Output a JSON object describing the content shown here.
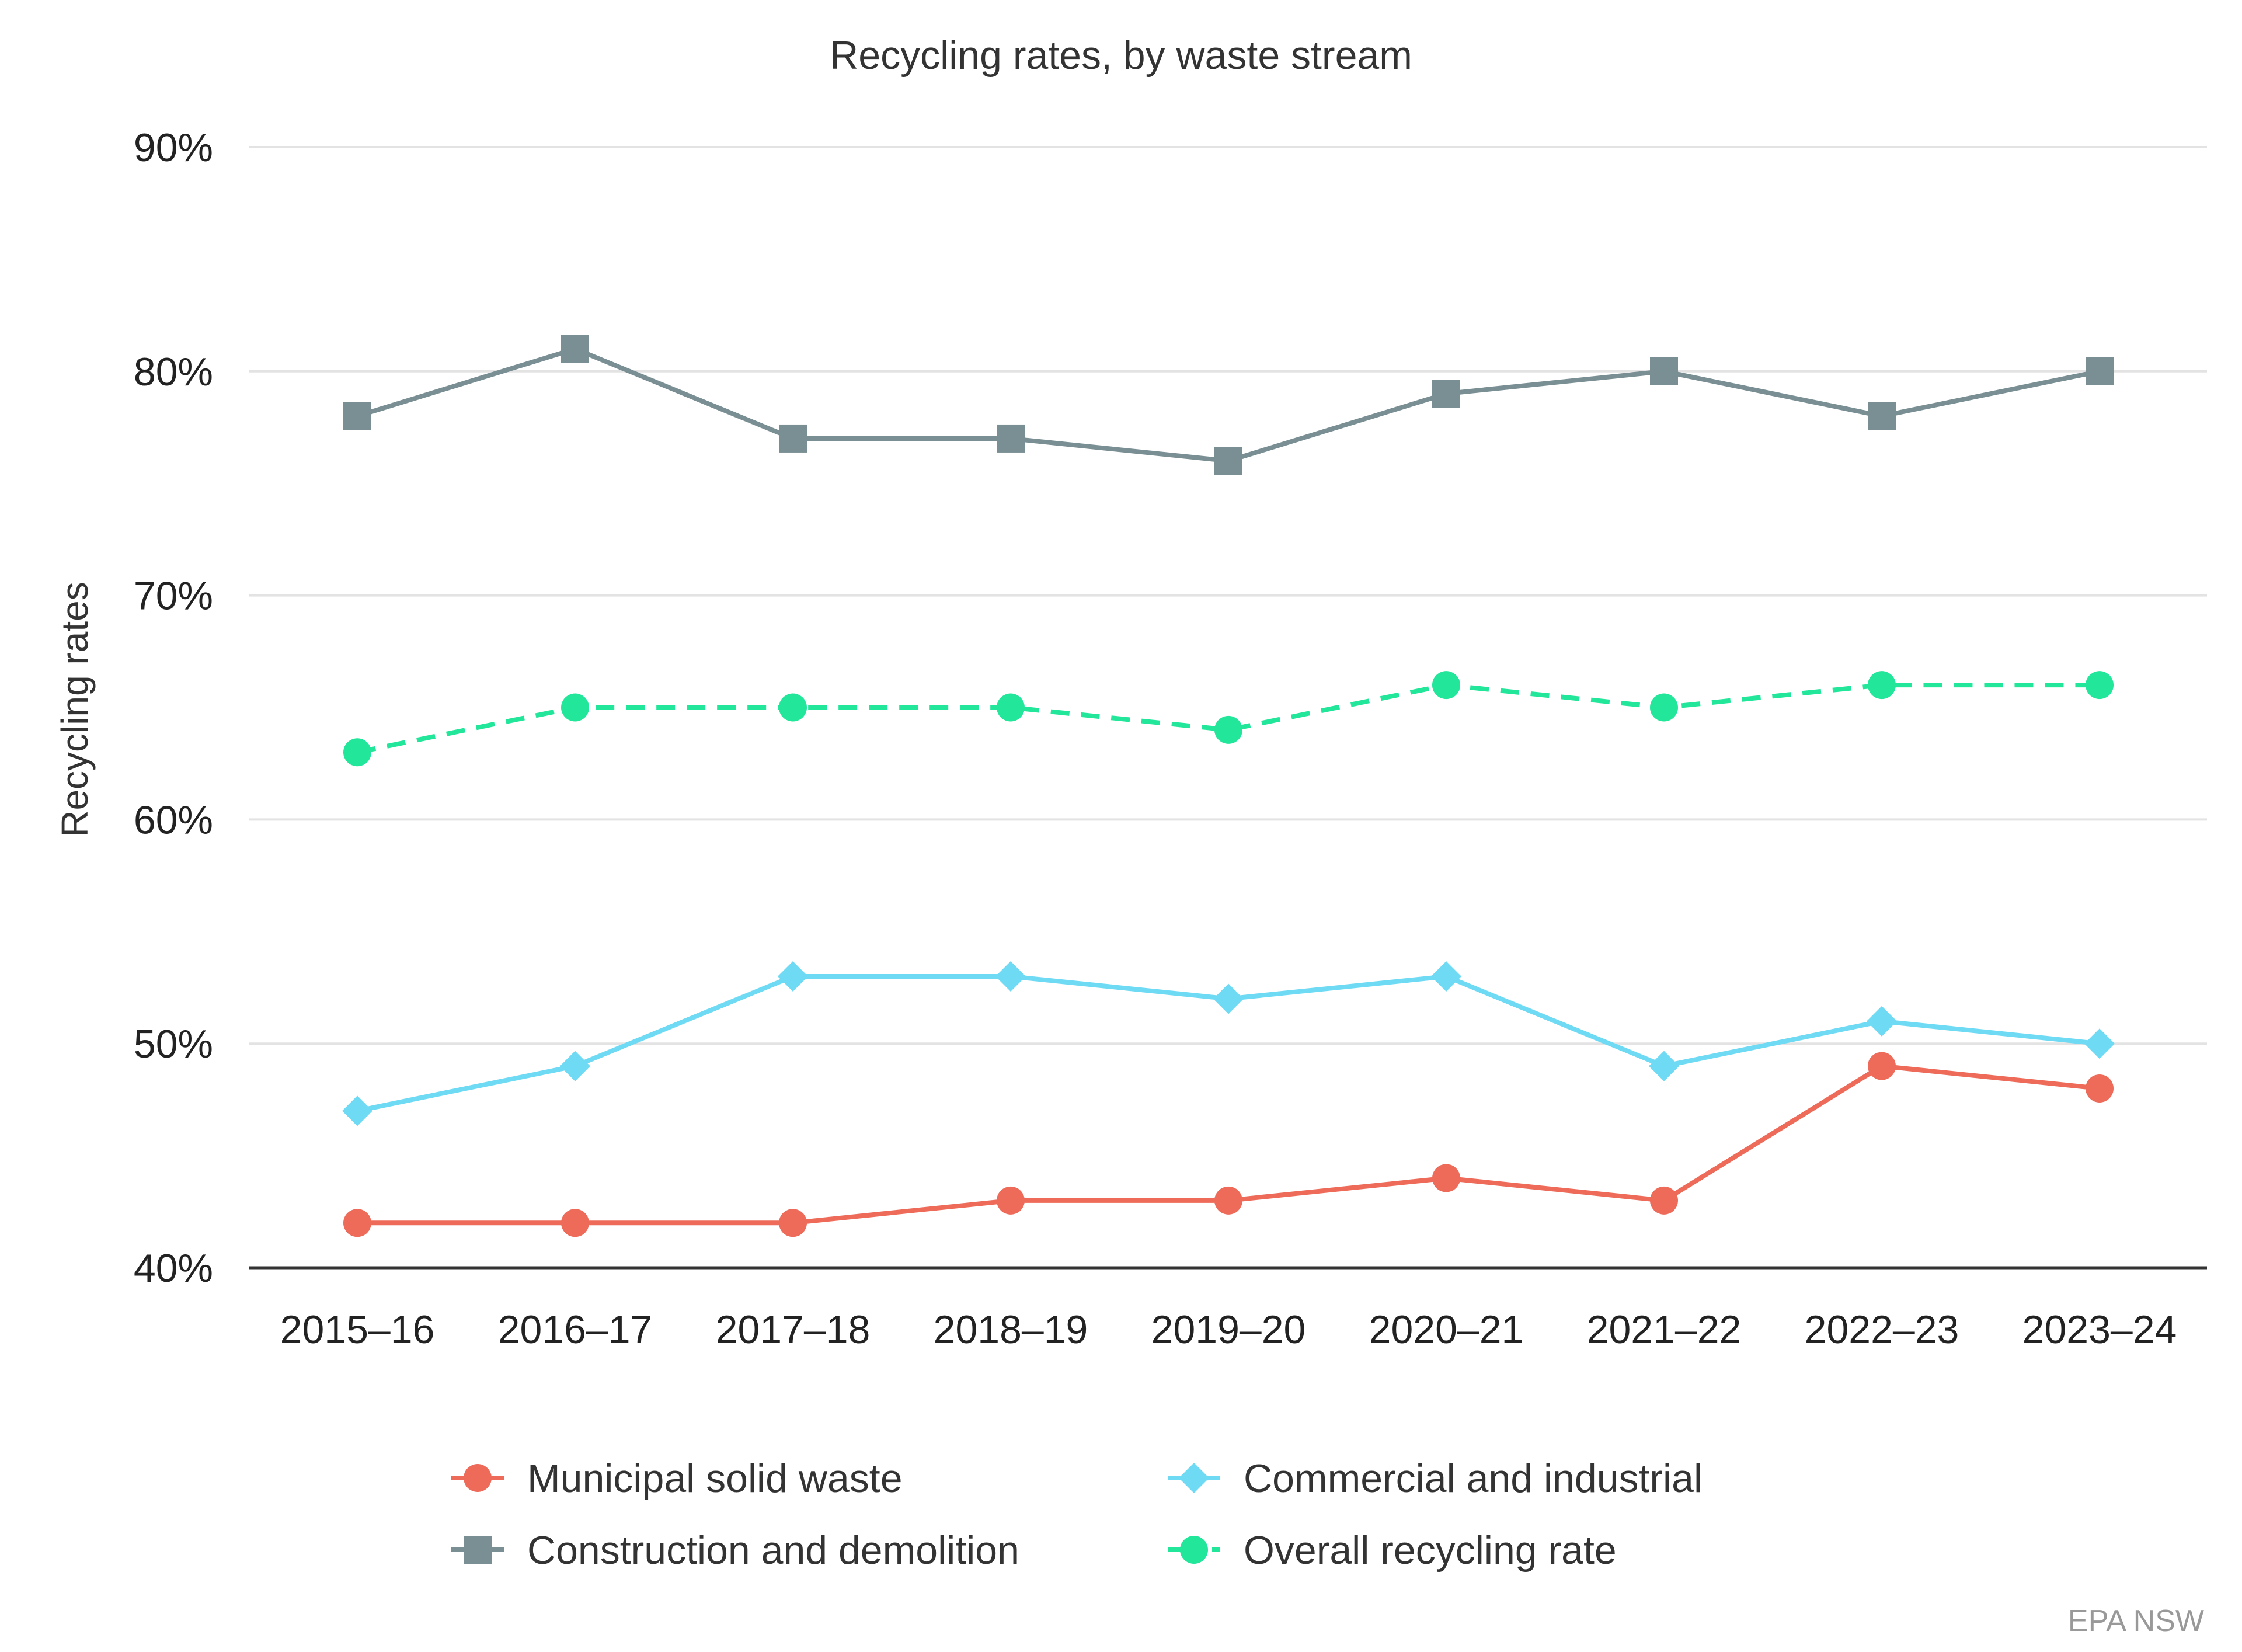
{
  "chart_data": {
    "type": "line",
    "title": "Recycling rates, by waste stream",
    "xlabel": "",
    "ylabel": "Recycling rates",
    "ylim": [
      40,
      90
    ],
    "yticks": [
      40,
      50,
      60,
      70,
      80,
      90
    ],
    "ytick_labels": [
      "40%",
      "50%",
      "60%",
      "70%",
      "80%",
      "90%"
    ],
    "grid": true,
    "legend_position": "bottom-center",
    "categories": [
      "2015–16",
      "2016–17",
      "2017–18",
      "2018–19",
      "2019–20",
      "2020–21",
      "2021–22",
      "2022–23",
      "2023–24"
    ],
    "series": [
      {
        "name": "Municipal solid waste",
        "color": "#ee6b5a",
        "marker": "circle",
        "dash": "solid",
        "values": [
          42,
          42,
          42,
          43,
          43,
          44,
          43,
          49,
          48
        ]
      },
      {
        "name": "Commercial and industrial",
        "color": "#6fdaf4",
        "marker": "diamond",
        "dash": "solid",
        "values": [
          47,
          49,
          53,
          53,
          52,
          53,
          49,
          51,
          50
        ]
      },
      {
        "name": "Construction and demolition",
        "color": "#7a8f94",
        "marker": "square",
        "dash": "solid",
        "values": [
          78,
          81,
          77,
          77,
          76,
          79,
          80,
          78,
          80
        ]
      },
      {
        "name": "Overall recycling rate",
        "color": "#22e69a",
        "marker": "circle",
        "dash": "dashed",
        "values": [
          63,
          65,
          65,
          65,
          64,
          66,
          65,
          66,
          66
        ]
      }
    ],
    "credit": "EPA NSW"
  }
}
